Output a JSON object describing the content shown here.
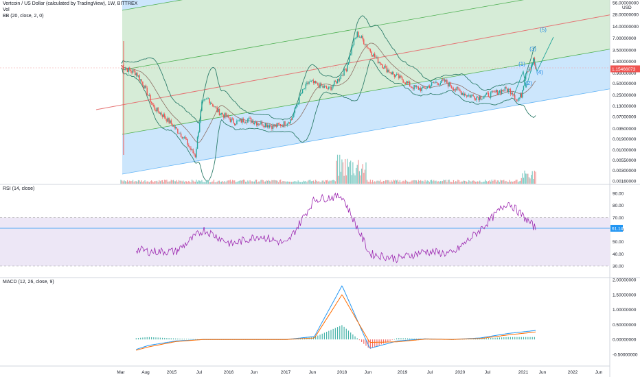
{
  "header": {
    "title": "Vertcoin / US Dollar (calculated by TradingView), 1W, BITTREX",
    "vol_label": "Vol",
    "bb_label": "BB (20, close, 2, 0)"
  },
  "rsi": {
    "label": "RSI (14, close)",
    "current": "61.14",
    "ticks": [
      "90.00",
      "80.00",
      "70.00",
      "60.00",
      "50.00",
      "40.00",
      "30.00"
    ]
  },
  "macd": {
    "label": "MACD (12, 26, close, 9)",
    "ticks": [
      "2.00000000",
      "1.50000000",
      "1.00000000",
      "0.50000000",
      "0.00000000",
      "-0.50000000"
    ]
  },
  "price_axis": {
    "unit": "USD",
    "ticks": [
      "56.00000000",
      "28.00000000",
      "14.00000000",
      "7.00000000",
      "3.50000000",
      "1.80000000",
      "0.90000000",
      "0.50000000",
      "0.25000000",
      "0.13000000",
      "0.07000000",
      "0.03500000",
      "0.01900000",
      "0.01000000",
      "0.00550000",
      "0.00300000",
      "0.00160000"
    ],
    "current_price": "1.15466073"
  },
  "time_axis": {
    "ticks": [
      "Mar",
      "Aug",
      "2015",
      "Jul",
      "2016",
      "Jun",
      "2017",
      "Jun",
      "2018",
      "Jun",
      "2019",
      "Jul",
      "2020",
      "Jul",
      "2021",
      "Jun",
      "2022",
      "Jun"
    ]
  },
  "waves": [
    "(1)",
    "(2)",
    "(3)",
    "(4)",
    "(5)"
  ],
  "colors": {
    "up": "#26a69a",
    "down": "#ef5350",
    "bb": "#2e7d6b",
    "channel_blue": "#bbdefb",
    "channel_green": "#c8e6c9",
    "rsi_line": "#9c27b0",
    "rsi_band": "#ede7f6",
    "macd_line": "#2196f3",
    "signal_line": "#ff6d00",
    "price_tag": "#ef5350"
  },
  "chart_data": [
    {
      "type": "candlestick",
      "title": "Vertcoin / US Dollar (calculated by TradingView), 1W, BITTREX",
      "yscale": "log",
      "ylim": [
        0.0016,
        56
      ],
      "x": [
        "Mar",
        "Aug",
        "2015",
        "Jul",
        "2016",
        "Jun",
        "2017",
        "Jun",
        "2018",
        "Jun",
        "2019",
        "Jul",
        "2020",
        "Jul",
        "2021",
        "Jun"
      ],
      "close_approx": [
        1.2,
        0.12,
        0.04,
        0.2,
        0.07,
        0.05,
        0.045,
        0.5,
        6.0,
        1.0,
        0.35,
        0.3,
        0.2,
        0.25,
        1.5,
        1.15
      ],
      "last": 1.15466073
    },
    {
      "type": "line",
      "title": "RSI (14, close)",
      "ylim": [
        30,
        90
      ],
      "x": [
        "Mar",
        "Aug",
        "2015",
        "Jul",
        "2016",
        "Jun",
        "2017",
        "Jun",
        "2018",
        "Jun",
        "2019",
        "Jul",
        "2020",
        "Jul",
        "2021",
        "Jun"
      ],
      "values": [
        46,
        42,
        42,
        60,
        48,
        55,
        48,
        85,
        88,
        40,
        36,
        42,
        40,
        60,
        83,
        61
      ],
      "last": 61.14
    },
    {
      "type": "line",
      "title": "MACD (12, 26, close, 9)",
      "ylim": [
        -0.6,
        2.0
      ],
      "x": [
        "Mar",
        "Aug",
        "2015",
        "Jul",
        "2016",
        "Jun",
        "2017",
        "Jun",
        "2018",
        "Jun",
        "2019",
        "Jul",
        "2020",
        "Jul",
        "2021",
        "Jun"
      ],
      "series": [
        {
          "values": [
            -0.5,
            -0.2,
            -0.05,
            0,
            0,
            0,
            0,
            0.1,
            1.8,
            -0.3,
            -0.05,
            0.02,
            0,
            0.05,
            0.2,
            0.3
          ]
        },
        {
          "values": [
            -0.5,
            -0.25,
            -0.07,
            0,
            0,
            0,
            0,
            0.05,
            1.5,
            -0.1,
            -0.08,
            0.01,
            0,
            0.03,
            0.15,
            0.25
          ]
        }
      ]
    }
  ]
}
